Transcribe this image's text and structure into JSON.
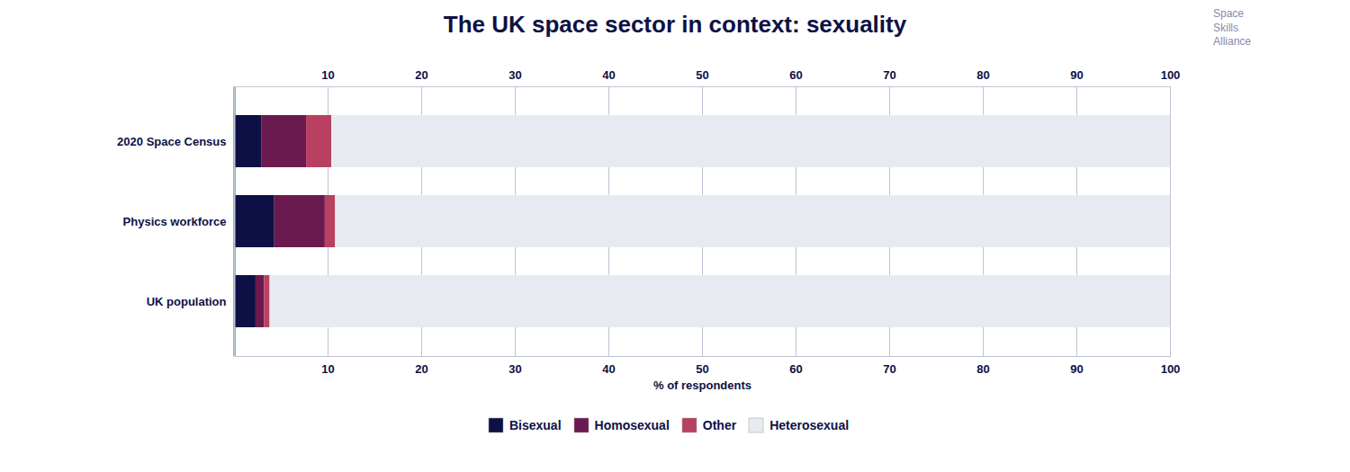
{
  "chart_data": {
    "type": "bar",
    "orientation": "horizontal",
    "stacked": true,
    "title": "The UK space sector in context: sexuality",
    "xlabel": "% of respondents",
    "annotations": [
      "Space\nSkills\nAlliance"
    ],
    "categories": [
      "2020 Space Census",
      "Physics workforce",
      "UK population"
    ],
    "series": [
      {
        "name": "Bisexual",
        "color": "#0d1145",
        "values": [
          2.9,
          4.3,
          2.3
        ]
      },
      {
        "name": "Homosexual",
        "color": "#6b1a50",
        "values": [
          4.8,
          5.4,
          0.9
        ]
      },
      {
        "name": "Other",
        "color": "#b84060",
        "values": [
          2.7,
          1.1,
          0.6
        ]
      },
      {
        "name": "Heterosexual",
        "color": "#e8eaf2",
        "values": [
          89.6,
          89.2,
          96.2
        ]
      }
    ],
    "xlim": [
      0,
      100
    ],
    "xticks": [
      10,
      20,
      30,
      40,
      50,
      60,
      70,
      80,
      90,
      100
    ],
    "grid": true,
    "legend": "bottom"
  }
}
